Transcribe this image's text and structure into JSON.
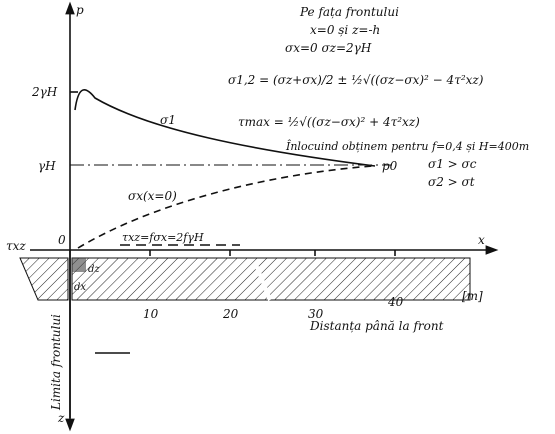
{
  "axes": {
    "p": "p",
    "x": "x",
    "z": "z",
    "origin": "0"
  },
  "notes": {
    "title": "Pe fața frontului",
    "condition": "x=0 și z=-h",
    "stresses": "σx=0   σz=2γH",
    "formula_s12": "σ1,2 = (σz+σx)/2 ± ½√((σz−σx)² − 4τ²xz)",
    "formula_tmax": "τmax = ½√((σz−σx)² + 4τ²xz)",
    "substitution": "Înlocuind obținem pentru f=0,4 și H=400m",
    "result1": "σ1 > σc",
    "result2": "σ2 > σt"
  },
  "labels": {
    "peak": "2γH",
    "gh": "γH",
    "sigma1": "σ1",
    "p0": "p0",
    "sigmax": "σx(x=0)",
    "txz_left": "τxz",
    "shear": "τxz=fσx=2fγH",
    "dz": "dz",
    "dx": "dx",
    "unit": "[m]",
    "distance": "Distanța până la front",
    "front": "Limita frontului"
  },
  "ticks": [
    "10",
    "20",
    "30",
    "40"
  ]
}
